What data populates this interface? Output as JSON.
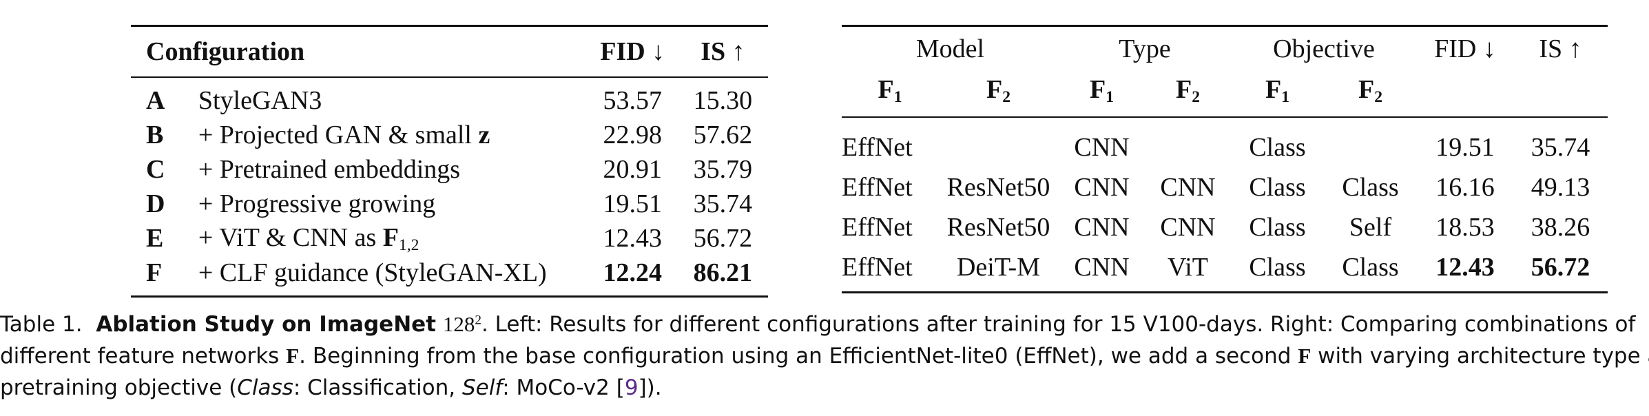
{
  "left_table": {
    "headers": {
      "configuration": "Configuration",
      "fid": "FID ↓",
      "is": "IS ↑"
    },
    "rows": [
      {
        "id": "A",
        "config": "StyleGAN3",
        "fid": "53.57",
        "is": "15.30"
      },
      {
        "id": "B",
        "config_prefix": "+ Projected GAN & small ",
        "config_bold": "z",
        "fid": "22.98",
        "is": "57.62"
      },
      {
        "id": "C",
        "config": "+ Pretrained embeddings",
        "fid": "20.91",
        "is": "35.79"
      },
      {
        "id": "D",
        "config": "+ Progressive growing",
        "fid": "19.51",
        "is": "35.74"
      },
      {
        "id": "E",
        "config_prefix": "+ ViT & CNN as ",
        "config_bold": "F",
        "config_sub": "1,2",
        "fid": "12.43",
        "is": "56.72"
      },
      {
        "id": "F",
        "config": "+ CLF guidance (StyleGAN-XL)",
        "fid": "12.24",
        "is": "86.21"
      }
    ]
  },
  "right_table": {
    "group_headers": {
      "model": "Model",
      "type": "Type",
      "objective": "Objective",
      "fid": "FID ↓",
      "is": "IS ↑"
    },
    "sub_headers": {
      "f_letter": "F",
      "sub1": "1",
      "sub2": "2"
    },
    "rows": [
      {
        "model_f1": "EffNet",
        "model_f2": "",
        "type_f1": "CNN",
        "type_f2": "",
        "obj_f1": "Class",
        "obj_f2": "",
        "fid": "19.51",
        "is": "35.74"
      },
      {
        "model_f1": "EffNet",
        "model_f2": "ResNet50",
        "type_f1": "CNN",
        "type_f2": "CNN",
        "obj_f1": "Class",
        "obj_f2": "Class",
        "fid": "16.16",
        "is": "49.13"
      },
      {
        "model_f1": "EffNet",
        "model_f2": "ResNet50",
        "type_f1": "CNN",
        "type_f2": "CNN",
        "obj_f1": "Class",
        "obj_f2": "Self",
        "fid": "18.53",
        "is": "38.26"
      },
      {
        "model_f1": "EffNet",
        "model_f2": "DeiT-M",
        "type_f1": "CNN",
        "type_f2": "ViT",
        "obj_f1": "Class",
        "obj_f2": "Class",
        "fid": "12.43",
        "is": "56.72"
      }
    ]
  },
  "caption": {
    "label": "Table 1.",
    "title": "Ablation Study on ImageNet",
    "resolution": "128",
    "resolution_exp": "2",
    "line1_rest": ". Left: Results for different configurations after training for 15 V100-days. Right: Comparing combinations of",
    "line2_a": "different feature networks ",
    "line2_F": "F",
    "line2_b": ". Beginning from the base configuration using an EfficientNet-lite0 (EffNet), we add a second ",
    "line2_F2": "F",
    "line2_c": " with varying architecture type and",
    "line3_a": "pretraining objective (",
    "line3_class": "Class",
    "line3_b": ": Classification, ",
    "line3_self": "Self",
    "line3_c": ": MoCo-v2 [",
    "line3_cite": "9",
    "line3_d": "])."
  }
}
